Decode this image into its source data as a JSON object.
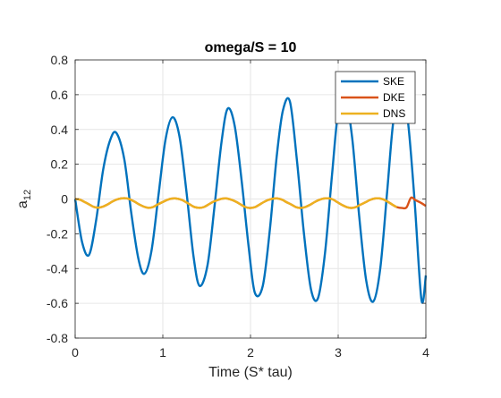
{
  "chart_data": {
    "type": "line",
    "title": "omega/S = 10",
    "xlabel": "Time (S* tau)",
    "ylabel_main": "a",
    "ylabel_sub": "12",
    "xlim": [
      0,
      4
    ],
    "ylim": [
      -0.8,
      0.8
    ],
    "x_ticks": [
      0,
      1,
      2,
      3,
      4
    ],
    "x_tick_labels": [
      "0",
      "1",
      "2",
      "3",
      "4"
    ],
    "y_ticks": [
      -0.8,
      -0.6,
      -0.4,
      -0.2,
      0,
      0.2,
      0.4,
      0.6,
      0.8
    ],
    "y_tick_labels": [
      "-0.8",
      "-0.6",
      "-0.4",
      "-0.2",
      "0",
      "0.2",
      "0.4",
      "0.6",
      "0.8"
    ],
    "grid": true,
    "legend_position": "top-right",
    "series": [
      {
        "name": "SKE",
        "color": "#0072BD",
        "x": [
          0,
          0.08,
          0.16,
          0.24,
          0.32,
          0.4,
          0.47,
          0.56,
          0.64,
          0.72,
          0.79,
          0.87,
          0.95,
          1.03,
          1.11,
          1.19,
          1.27,
          1.35,
          1.42,
          1.51,
          1.59,
          1.67,
          1.74,
          1.82,
          1.9,
          1.98,
          2.05,
          2.14,
          2.22,
          2.3,
          2.37,
          2.45,
          2.53,
          2.61,
          2.69,
          2.77,
          2.85,
          2.93,
          3.0,
          3.08,
          3.16,
          3.24,
          3.32,
          3.4,
          3.48,
          3.56,
          3.63,
          3.71,
          3.79,
          3.87,
          3.95,
          4.0
        ],
        "y": [
          0,
          -0.25,
          -0.32,
          -0.12,
          0.17,
          0.34,
          0.38,
          0.23,
          -0.08,
          -0.34,
          -0.43,
          -0.3,
          0.02,
          0.34,
          0.47,
          0.36,
          0.04,
          -0.33,
          -0.5,
          -0.38,
          -0.04,
          0.33,
          0.52,
          0.42,
          0.1,
          -0.28,
          -0.54,
          -0.5,
          -0.18,
          0.25,
          0.51,
          0.56,
          0.22,
          -0.2,
          -0.52,
          -0.57,
          -0.31,
          0.14,
          0.5,
          0.58,
          0.35,
          -0.1,
          -0.47,
          -0.59,
          -0.4,
          0.05,
          0.45,
          0.6,
          0.47,
          0.0,
          -0.58,
          -0.44
        ]
      },
      {
        "name": "DKE",
        "color": "#D95319",
        "x": [
          0,
          0.05,
          0.1,
          0.16,
          0.21,
          0.26,
          0.31,
          0.37,
          0.42,
          0.47,
          0.52,
          0.58,
          0.63,
          0.68,
          0.73,
          0.79,
          0.84,
          0.89,
          0.94,
          1.0,
          1.05,
          1.1,
          1.15,
          1.21,
          1.26,
          1.31,
          1.36,
          1.42,
          1.47,
          1.52,
          1.57,
          1.63,
          1.68,
          1.73,
          1.78,
          1.84,
          1.89,
          1.94,
          1.99,
          2.05,
          2.1,
          2.15,
          2.2,
          2.26,
          2.31,
          2.36,
          2.41,
          2.47,
          2.52,
          2.57,
          2.62,
          2.68,
          2.73,
          2.78,
          2.83,
          2.89,
          2.94,
          2.99,
          3.04,
          3.1,
          3.15,
          3.2,
          3.25,
          3.31,
          3.36,
          3.41,
          3.46,
          3.52,
          3.57,
          3.62,
          3.67,
          3.73,
          3.78,
          3.83,
          3.88,
          3.94,
          4.0
        ],
        "y": [
          0,
          -0.003,
          -0.015,
          -0.031,
          -0.045,
          -0.05,
          -0.045,
          -0.031,
          -0.016,
          -0.004,
          0.003,
          0.004,
          -0.003,
          -0.016,
          -0.031,
          -0.045,
          -0.051,
          -0.046,
          -0.032,
          -0.017,
          -0.005,
          0.002,
          0.003,
          -0.004,
          -0.017,
          -0.032,
          -0.046,
          -0.051,
          -0.046,
          -0.032,
          -0.017,
          -0.005,
          0.002,
          0.003,
          -0.004,
          -0.017,
          -0.032,
          -0.046,
          -0.052,
          -0.047,
          -0.033,
          -0.018,
          -0.006,
          0.002,
          0.003,
          -0.004,
          -0.018,
          -0.033,
          -0.047,
          -0.052,
          -0.047,
          -0.033,
          -0.018,
          -0.006,
          0.002,
          0.004,
          -0.003,
          -0.018,
          -0.033,
          -0.047,
          -0.052,
          -0.047,
          -0.034,
          -0.019,
          -0.006,
          0.002,
          0.004,
          -0.003,
          -0.017,
          -0.033,
          -0.047,
          -0.052,
          -0.048,
          0.007,
          -0.006,
          -0.021,
          -0.04
        ]
      },
      {
        "name": "DNS",
        "color": "#EDB120",
        "x": [
          0,
          0.05,
          0.1,
          0.16,
          0.21,
          0.26,
          0.31,
          0.37,
          0.42,
          0.47,
          0.52,
          0.58,
          0.63,
          0.68,
          0.73,
          0.79,
          0.84,
          0.89,
          0.94,
          1.0,
          1.05,
          1.1,
          1.15,
          1.21,
          1.26,
          1.31,
          1.36,
          1.42,
          1.47,
          1.52,
          1.57,
          1.63,
          1.68,
          1.73,
          1.78,
          1.84,
          1.89,
          1.94,
          1.99,
          2.05,
          2.1,
          2.15,
          2.2,
          2.26,
          2.31,
          2.36,
          2.41,
          2.47,
          2.52,
          2.57,
          2.62,
          2.68,
          2.73,
          2.78,
          2.83,
          2.89,
          2.94,
          2.99,
          3.04,
          3.1,
          3.15,
          3.2,
          3.25,
          3.31,
          3.36,
          3.41,
          3.46,
          3.52,
          3.57,
          3.62,
          3.67
        ],
        "y": [
          0,
          -0.003,
          -0.015,
          -0.031,
          -0.045,
          -0.05,
          -0.045,
          -0.031,
          -0.016,
          -0.004,
          0.003,
          0.004,
          -0.003,
          -0.016,
          -0.031,
          -0.045,
          -0.051,
          -0.046,
          -0.032,
          -0.017,
          -0.005,
          0.002,
          0.003,
          -0.004,
          -0.017,
          -0.032,
          -0.046,
          -0.051,
          -0.046,
          -0.032,
          -0.017,
          -0.005,
          0.002,
          0.003,
          -0.004,
          -0.017,
          -0.032,
          -0.046,
          -0.052,
          -0.047,
          -0.033,
          -0.018,
          -0.006,
          0.002,
          0.003,
          -0.004,
          -0.018,
          -0.033,
          -0.047,
          -0.052,
          -0.047,
          -0.033,
          -0.018,
          -0.006,
          0.002,
          0.004,
          -0.003,
          -0.018,
          -0.033,
          -0.047,
          -0.052,
          -0.047,
          -0.034,
          -0.019,
          -0.006,
          0.002,
          0.004,
          -0.003,
          -0.017,
          -0.033,
          -0.047
        ]
      }
    ]
  }
}
